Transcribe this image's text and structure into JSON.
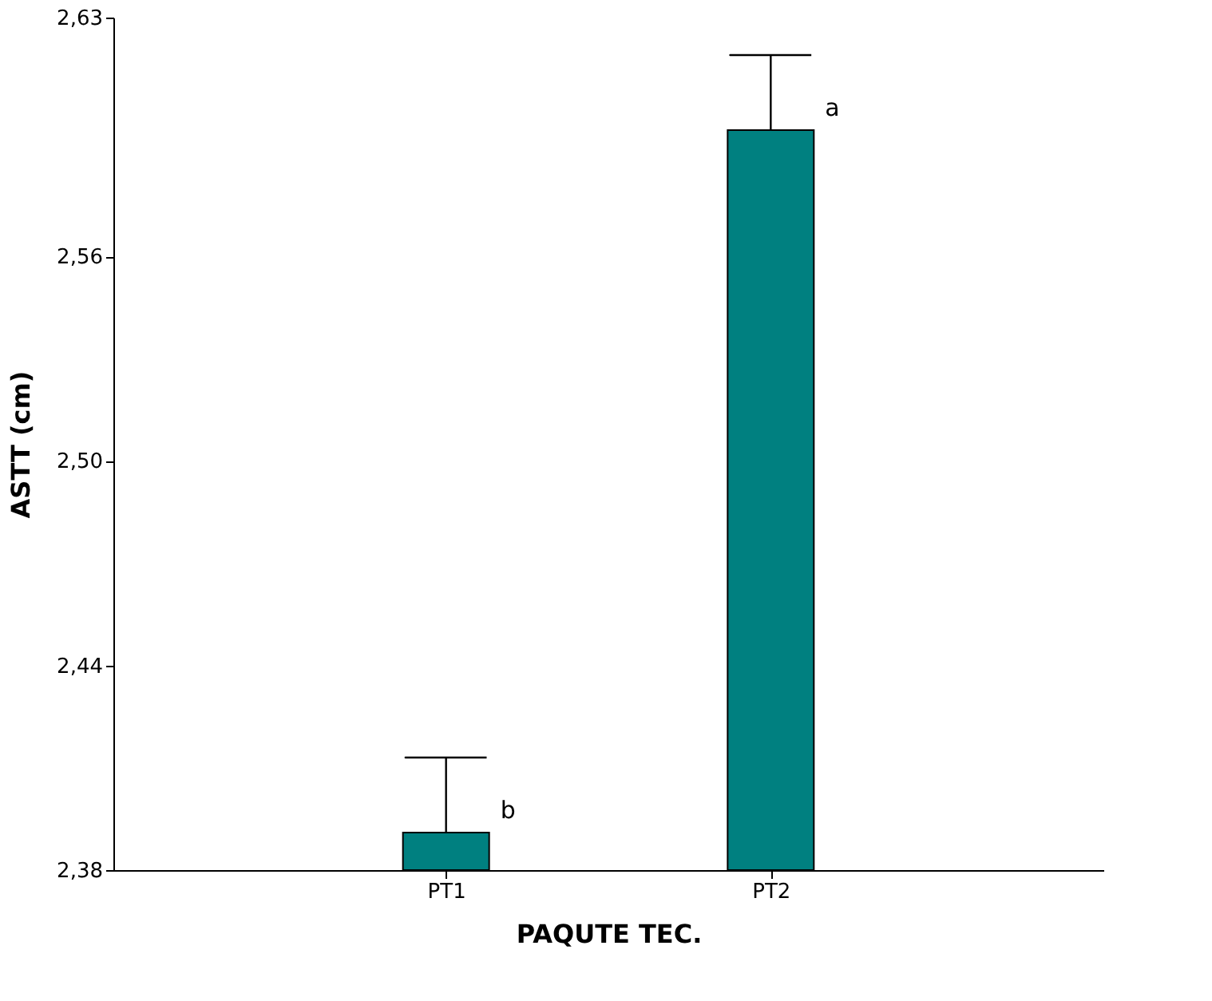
{
  "chart_data": {
    "type": "bar",
    "xlabel": "PAQUTE TEC.",
    "ylabel": "ASTT (cm)",
    "categories": [
      "PT1",
      "PT2"
    ],
    "series": [
      {
        "color": "#008080",
        "values": [
          2.391,
          2.597
        ],
        "errors": [
          [
            2.391,
            2.413
          ],
          [
            2.597,
            2.619
          ]
        ]
      }
    ],
    "ylim": [
      2.38,
      2.63
    ],
    "yticks": [
      {
        "value": 2.38,
        "label": "2,38"
      },
      {
        "value": 2.44,
        "label": "2,44"
      },
      {
        "value": 2.5,
        "label": "2,50"
      },
      {
        "value": 2.56,
        "label": "2,56"
      },
      {
        "value": 2.63,
        "label": "2,63"
      }
    ],
    "annotations": [
      {
        "text": "b",
        "x": "PT1",
        "y": 2.391
      },
      {
        "text": "a",
        "x": "PT2",
        "y": 2.597
      }
    ],
    "grid": false,
    "legend": false
  }
}
